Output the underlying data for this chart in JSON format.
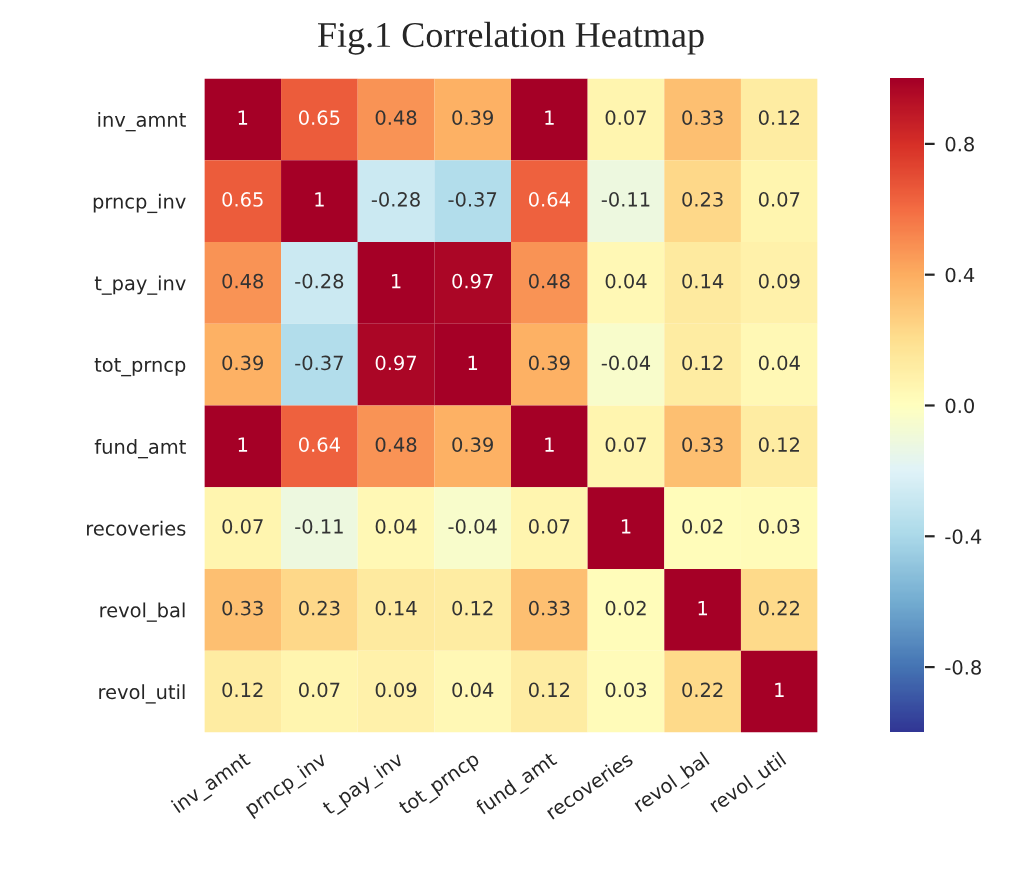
{
  "chart_data": {
    "type": "heatmap",
    "title": "Fig.1 Correlation Heatmap",
    "categories": [
      "inv_amnt",
      "prncp_inv",
      "t_pay_inv",
      "tot_prncp",
      "fund_amt",
      "recoveries",
      "revol_bal",
      "revol_util"
    ],
    "y_categories": [
      "inv_amnt",
      "prncp_inv",
      "t_pay_inv",
      "tot_prncp",
      "fund_amt",
      "recoveries",
      "revol_bal",
      "revol_util"
    ],
    "cells": [
      [
        1,
        0.65,
        0.48,
        0.39,
        1,
        0.07,
        0.33,
        0.12
      ],
      [
        0.65,
        1,
        -0.28,
        -0.37,
        0.64,
        -0.11,
        0.23,
        0.07
      ],
      [
        0.48,
        -0.28,
        1,
        0.97,
        0.48,
        0.04,
        0.14,
        0.09
      ],
      [
        0.39,
        -0.37,
        0.97,
        1,
        0.39,
        -0.04,
        0.12,
        0.04
      ],
      [
        1,
        0.64,
        0.48,
        0.39,
        1,
        0.07,
        0.33,
        0.12
      ],
      [
        0.07,
        -0.11,
        0.04,
        -0.04,
        0.07,
        1,
        0.02,
        0.03
      ],
      [
        0.33,
        0.23,
        0.14,
        0.12,
        0.33,
        0.02,
        1,
        0.22
      ],
      [
        0.12,
        0.07,
        0.09,
        0.04,
        0.12,
        0.03,
        0.22,
        1
      ]
    ],
    "data_labels": true,
    "clim": [
      -1,
      1
    ],
    "cticks": [
      -0.8,
      -0.4,
      {
        "value": 0,
        "label": "0.0"
      },
      0.4,
      0.8
    ]
  }
}
